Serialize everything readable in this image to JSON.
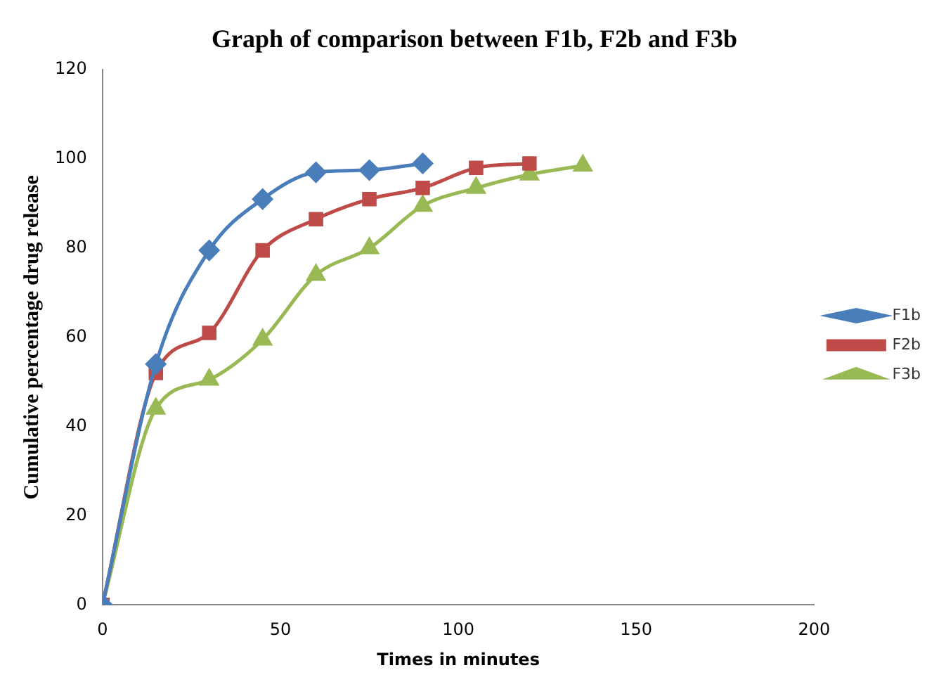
{
  "chart_data": {
    "type": "line",
    "title": "Graph of comparison between F1b, F2b and F3b",
    "xlabel": "Times in minutes",
    "ylabel": "Cumulative percentage drug release",
    "xlim": [
      0,
      200
    ],
    "xticks": [
      0,
      50,
      100,
      150,
      200
    ],
    "ylim": [
      0,
      120
    ],
    "yticks": [
      0,
      20,
      40,
      60,
      80,
      100,
      120
    ],
    "grid": false,
    "legend": "right",
    "line_style": "solid",
    "series": [
      {
        "name": "F1b",
        "color": "#4a7ebb",
        "marker": "diamond",
        "x": [
          0,
          15,
          30,
          45,
          60,
          75,
          90
        ],
        "values": [
          0,
          54,
          79.5,
          91,
          97,
          97.5,
          99
        ]
      },
      {
        "name": "F2b",
        "color": "#be4b48",
        "marker": "square",
        "x": [
          0,
          15,
          30,
          45,
          60,
          75,
          90,
          105,
          120
        ],
        "values": [
          0,
          52,
          61,
          79.5,
          86.5,
          91,
          93.5,
          98,
          99
        ]
      },
      {
        "name": "F3b",
        "color": "#98b954",
        "marker": "triangle",
        "x": [
          0,
          15,
          30,
          45,
          60,
          75,
          90,
          105,
          120,
          135
        ],
        "values": [
          0,
          44,
          50.5,
          59.5,
          74,
          80,
          89.5,
          93.5,
          96.5,
          98.5
        ]
      }
    ]
  }
}
